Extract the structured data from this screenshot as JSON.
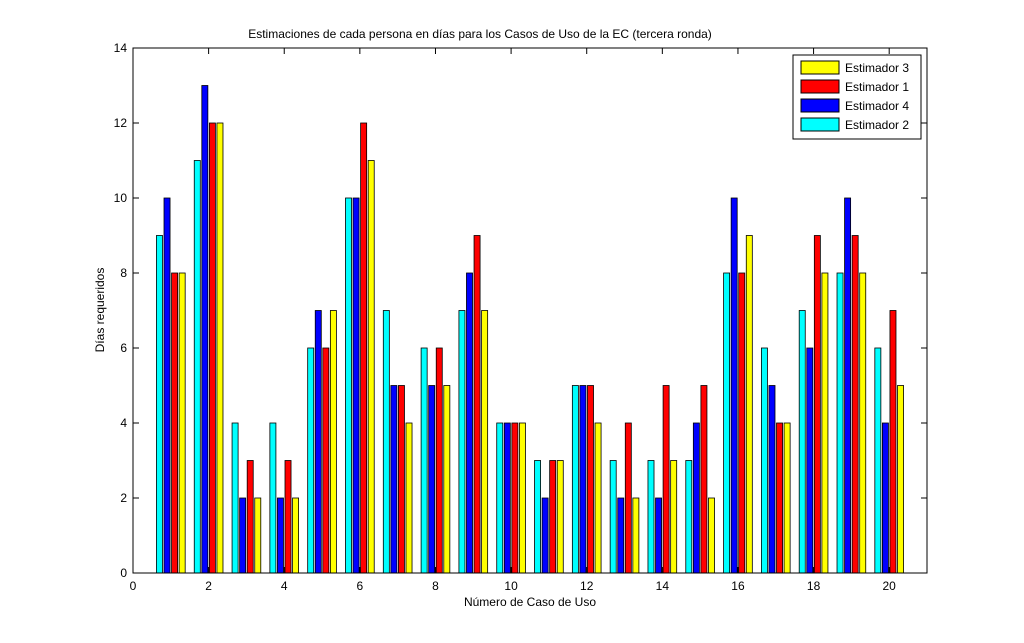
{
  "chart_data": {
    "type": "bar",
    "title": "Estimaciones de cada persona en días para los Casos de Uso de la EC (tercera ronda)",
    "xlabel": "Número de Caso de Uso",
    "ylabel": "Días requeridos",
    "xlim": [
      0,
      21
    ],
    "ylim": [
      0,
      14
    ],
    "xticks": [
      0,
      2,
      4,
      6,
      8,
      10,
      12,
      14,
      16,
      18,
      20
    ],
    "yticks": [
      0,
      2,
      4,
      6,
      8,
      10,
      12,
      14
    ],
    "grid": false,
    "legend_position": "top-right",
    "categories": [
      1,
      2,
      3,
      4,
      5,
      6,
      7,
      8,
      9,
      10,
      11,
      12,
      13,
      14,
      15,
      16,
      17,
      18,
      19,
      20
    ],
    "series": [
      {
        "name": "Estimador 2",
        "color": "#00ffff",
        "values": [
          9,
          11,
          4,
          4,
          6,
          10,
          7,
          6,
          7,
          4,
          3,
          5,
          3,
          3,
          3,
          8,
          6,
          7,
          8,
          6
        ]
      },
      {
        "name": "Estimador 4",
        "color": "#0000ff",
        "values": [
          10,
          13,
          2,
          2,
          7,
          10,
          5,
          5,
          8,
          4,
          2,
          5,
          2,
          2,
          4,
          10,
          5,
          6,
          10,
          4
        ]
      },
      {
        "name": "Estimador 1",
        "color": "#ff0000",
        "values": [
          8,
          12,
          3,
          3,
          6,
          12,
          5,
          6,
          9,
          4,
          3,
          5,
          4,
          5,
          5,
          8,
          4,
          9,
          9,
          7
        ]
      },
      {
        "name": "Estimador 3",
        "color": "#ffff00",
        "values": [
          8,
          12,
          2,
          2,
          7,
          11,
          4,
          5,
          7,
          4,
          3,
          4,
          2,
          3,
          2,
          9,
          4,
          8,
          8,
          5
        ]
      }
    ],
    "legend_order": [
      "Estimador 3",
      "Estimador 1",
      "Estimador 4",
      "Estimador 2"
    ]
  }
}
